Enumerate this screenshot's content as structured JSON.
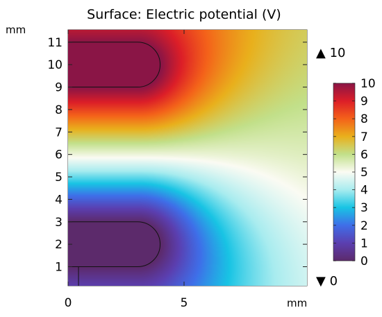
{
  "chart_data": {
    "type": "heatmap",
    "title": "Surface: Electric potential (V)",
    "x_unit": "mm",
    "y_unit": "mm",
    "x_ticks": [
      0,
      5
    ],
    "y_ticks": [
      1,
      2,
      3,
      4,
      5,
      6,
      7,
      8,
      9,
      10,
      11
    ],
    "xlim": [
      0,
      10.3
    ],
    "ylim": [
      0.15,
      11.55
    ],
    "colorbar": {
      "min": 0,
      "max": 10,
      "ticks": [
        0,
        1,
        2,
        3,
        4,
        5,
        6,
        7,
        8,
        9,
        10
      ],
      "colormap": "Rainbow",
      "max_marker": "▲ 10",
      "min_marker": "▼ 0",
      "stops": [
        {
          "value": 0,
          "color": "#5c2a6b"
        },
        {
          "value": 1,
          "color": "#5b3fb0"
        },
        {
          "value": 2,
          "color": "#3f6ee8"
        },
        {
          "value": 3,
          "color": "#18c4e4"
        },
        {
          "value": 4,
          "color": "#a8ecef"
        },
        {
          "value": 5,
          "color": "#fbfbf3"
        },
        {
          "value": 6,
          "color": "#c2e08a"
        },
        {
          "value": 7,
          "color": "#e9b01c"
        },
        {
          "value": 8,
          "color": "#f4621a"
        },
        {
          "value": 9,
          "color": "#dc1e28"
        },
        {
          "value": 10,
          "color": "#8a1546"
        }
      ]
    },
    "electrodes": [
      {
        "name": "top",
        "potential": 10,
        "y_range": [
          9,
          11
        ],
        "x_range": [
          0,
          4
        ]
      },
      {
        "name": "bottom",
        "potential": 0,
        "y_range": [
          1,
          3
        ],
        "x_range": [
          0,
          4
        ]
      }
    ],
    "grid": false
  }
}
